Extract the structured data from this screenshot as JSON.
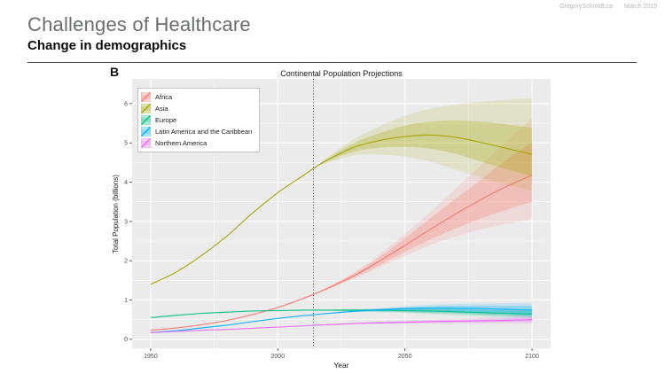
{
  "slide": {
    "credit": "GregorySchmidt.ca",
    "date": "March 2019",
    "title": "Challenges of Healthcare",
    "subtitle": "Change in demographics",
    "panel_label": "B"
  },
  "chart_data": {
    "type": "line",
    "title": "Continental Population Projections",
    "xlabel": "Year",
    "ylabel": "Total Population (billions)",
    "x_ticks": [
      1950,
      2000,
      2050,
      2100
    ],
    "x_minor_ticks": [
      1975,
      2025,
      2075
    ],
    "y_ticks": [
      0,
      1,
      2,
      3,
      4,
      5,
      6
    ],
    "y_minor_ticks": [
      0.5,
      1.5,
      2.5,
      3.5,
      4.5,
      5.5
    ],
    "xlim": [
      1942.7,
      2107.3
    ],
    "ylim": [
      -0.23,
      6.63
    ],
    "grid": true,
    "panel_bg": "#EBEBEB",
    "grid_color": "#FFFFFF",
    "legend_position": "top-left",
    "reference_line": {
      "x": 2014,
      "style": "dotted",
      "color": "#3f3f3f"
    },
    "uncertainty_bands": {
      "inner": "80% interval",
      "outer": "95% interval",
      "inner_opacity": 0.27,
      "outer_opacity": 0.15
    },
    "years": [
      1950,
      1960,
      1970,
      1980,
      1990,
      2000,
      2010,
      2015,
      2020,
      2030,
      2040,
      2050,
      2060,
      2070,
      2080,
      2090,
      2100
    ],
    "series": [
      {
        "name": "Africa",
        "color": "#F8766D",
        "median": [
          0.23,
          0.29,
          0.37,
          0.48,
          0.63,
          0.81,
          1.04,
          1.17,
          1.31,
          1.62,
          1.99,
          2.39,
          2.8,
          3.19,
          3.56,
          3.89,
          4.18
        ],
        "lo80": [
          0.23,
          0.29,
          0.37,
          0.48,
          0.63,
          0.81,
          1.04,
          1.17,
          1.29,
          1.57,
          1.89,
          2.22,
          2.54,
          2.82,
          3.08,
          3.3,
          3.5
        ],
        "hi80": [
          0.23,
          0.29,
          0.37,
          0.48,
          0.63,
          0.81,
          1.04,
          1.17,
          1.33,
          1.67,
          2.09,
          2.57,
          3.08,
          3.58,
          4.07,
          4.57,
          5.02
        ],
        "lo95": [
          0.23,
          0.29,
          0.37,
          0.48,
          0.63,
          0.81,
          1.04,
          1.17,
          1.28,
          1.54,
          1.83,
          2.12,
          2.4,
          2.62,
          2.8,
          2.94,
          3.06
        ],
        "hi95": [
          0.23,
          0.29,
          0.37,
          0.48,
          0.63,
          0.81,
          1.04,
          1.17,
          1.35,
          1.71,
          2.16,
          2.69,
          3.24,
          3.84,
          4.44,
          5.04,
          5.63
        ]
      },
      {
        "name": "Asia",
        "color": "#A3A500",
        "median": [
          1.4,
          1.71,
          2.13,
          2.63,
          3.21,
          3.73,
          4.17,
          4.39,
          4.58,
          4.89,
          5.06,
          5.16,
          5.2,
          5.14,
          5.01,
          4.86,
          4.71
        ],
        "lo80": [
          1.4,
          1.71,
          2.13,
          2.63,
          3.21,
          3.73,
          4.17,
          4.39,
          4.54,
          4.78,
          4.88,
          4.9,
          4.85,
          4.72,
          4.52,
          4.33,
          4.15
        ],
        "hi80": [
          1.4,
          1.71,
          2.13,
          2.63,
          3.21,
          3.73,
          4.17,
          4.39,
          4.62,
          5.0,
          5.25,
          5.44,
          5.54,
          5.57,
          5.54,
          5.47,
          5.39
        ],
        "lo95": [
          1.4,
          1.71,
          2.13,
          2.63,
          3.21,
          3.73,
          4.17,
          4.39,
          4.5,
          4.68,
          4.7,
          4.65,
          4.52,
          4.32,
          4.11,
          3.94,
          3.79
        ],
        "hi95": [
          1.4,
          1.71,
          2.13,
          2.63,
          3.21,
          3.73,
          4.17,
          4.39,
          4.66,
          5.1,
          5.42,
          5.69,
          5.87,
          5.98,
          6.05,
          6.1,
          6.14
        ]
      },
      {
        "name": "Europe",
        "color": "#00BF7D",
        "median": [
          0.55,
          0.61,
          0.66,
          0.69,
          0.72,
          0.73,
          0.74,
          0.74,
          0.74,
          0.74,
          0.74,
          0.73,
          0.72,
          0.7,
          0.68,
          0.66,
          0.64
        ],
        "lo80": [
          0.55,
          0.61,
          0.66,
          0.69,
          0.72,
          0.73,
          0.74,
          0.74,
          0.73,
          0.72,
          0.71,
          0.69,
          0.67,
          0.65,
          0.62,
          0.6,
          0.57
        ],
        "hi80": [
          0.55,
          0.61,
          0.66,
          0.69,
          0.72,
          0.73,
          0.74,
          0.74,
          0.75,
          0.76,
          0.77,
          0.77,
          0.77,
          0.76,
          0.74,
          0.73,
          0.71
        ],
        "lo95": [
          0.55,
          0.61,
          0.66,
          0.69,
          0.72,
          0.73,
          0.74,
          0.74,
          0.73,
          0.71,
          0.69,
          0.67,
          0.64,
          0.61,
          0.58,
          0.55,
          0.53
        ],
        "hi95": [
          0.55,
          0.61,
          0.66,
          0.69,
          0.72,
          0.73,
          0.74,
          0.74,
          0.75,
          0.77,
          0.78,
          0.79,
          0.79,
          0.79,
          0.78,
          0.77,
          0.75
        ]
      },
      {
        "name": "Latin America and the Caribbean",
        "color": "#00B0F6",
        "median": [
          0.17,
          0.22,
          0.29,
          0.36,
          0.45,
          0.53,
          0.6,
          0.63,
          0.66,
          0.71,
          0.75,
          0.78,
          0.79,
          0.79,
          0.78,
          0.76,
          0.74
        ],
        "lo80": [
          0.17,
          0.22,
          0.29,
          0.36,
          0.45,
          0.53,
          0.6,
          0.63,
          0.65,
          0.7,
          0.72,
          0.74,
          0.74,
          0.72,
          0.7,
          0.67,
          0.64
        ],
        "hi80": [
          0.17,
          0.22,
          0.29,
          0.36,
          0.45,
          0.53,
          0.6,
          0.63,
          0.67,
          0.73,
          0.77,
          0.81,
          0.84,
          0.85,
          0.85,
          0.85,
          0.85
        ],
        "lo95": [
          0.17,
          0.22,
          0.29,
          0.36,
          0.45,
          0.53,
          0.6,
          0.63,
          0.65,
          0.69,
          0.7,
          0.71,
          0.7,
          0.68,
          0.64,
          0.61,
          0.57
        ],
        "hi95": [
          0.17,
          0.22,
          0.29,
          0.36,
          0.45,
          0.53,
          0.6,
          0.63,
          0.67,
          0.74,
          0.79,
          0.84,
          0.88,
          0.9,
          0.91,
          0.92,
          0.93
        ]
      },
      {
        "name": "Northern America",
        "color": "#E76BF3",
        "median": [
          0.17,
          0.2,
          0.23,
          0.25,
          0.28,
          0.31,
          0.34,
          0.36,
          0.37,
          0.4,
          0.42,
          0.43,
          0.45,
          0.46,
          0.47,
          0.48,
          0.5
        ],
        "lo80": [
          0.17,
          0.2,
          0.23,
          0.25,
          0.28,
          0.31,
          0.34,
          0.36,
          0.37,
          0.39,
          0.4,
          0.41,
          0.42,
          0.43,
          0.43,
          0.44,
          0.44
        ],
        "hi80": [
          0.17,
          0.2,
          0.23,
          0.25,
          0.28,
          0.31,
          0.34,
          0.36,
          0.38,
          0.41,
          0.44,
          0.46,
          0.48,
          0.49,
          0.51,
          0.53,
          0.56
        ],
        "lo95": [
          0.17,
          0.2,
          0.23,
          0.25,
          0.28,
          0.31,
          0.34,
          0.36,
          0.36,
          0.38,
          0.39,
          0.4,
          0.4,
          0.4,
          0.4,
          0.4,
          0.4
        ],
        "hi95": [
          0.17,
          0.2,
          0.23,
          0.25,
          0.28,
          0.31,
          0.34,
          0.36,
          0.38,
          0.42,
          0.45,
          0.48,
          0.5,
          0.52,
          0.55,
          0.58,
          0.61
        ]
      }
    ]
  }
}
